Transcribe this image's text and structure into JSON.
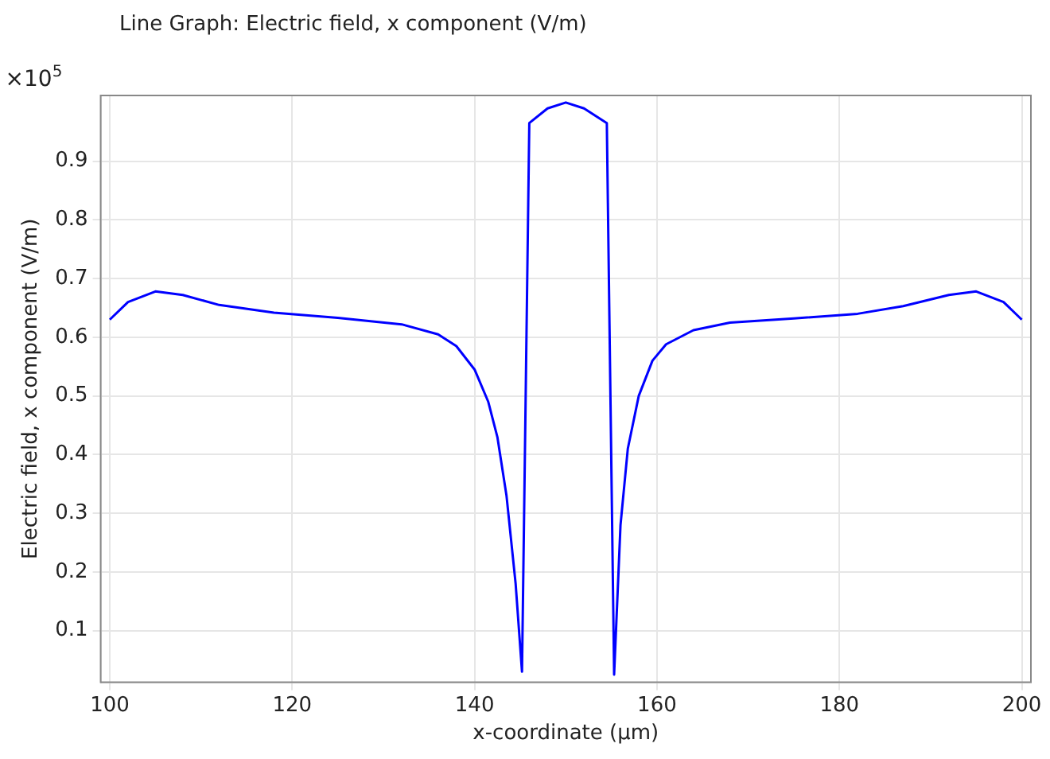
{
  "chart_data": {
    "type": "line",
    "title": "Line Graph: Electric field, x component (V/m)",
    "xlabel": "x-coordinate (µm)",
    "ylabel": "Electric field, x component (V/m)",
    "annotations": [
      "×10$^{5}$"
    ],
    "x": [
      100,
      102,
      105,
      108,
      112,
      118,
      125,
      132,
      136,
      138,
      140,
      141.5,
      142.5,
      143.5,
      144.5,
      145.2,
      146,
      148,
      150,
      152,
      154.5,
      155.3,
      156,
      156.8,
      158,
      159.5,
      161,
      164,
      168,
      175,
      182,
      187,
      192,
      195,
      198,
      200
    ],
    "series": [
      {
        "color": "#0000ff",
        "values": [
          0.63,
          0.66,
          0.678,
          0.672,
          0.655,
          0.642,
          0.633,
          0.622,
          0.605,
          0.585,
          0.545,
          0.49,
          0.43,
          0.33,
          0.18,
          0.03,
          0.965,
          0.99,
          1.0,
          0.99,
          0.965,
          0.025,
          0.28,
          0.41,
          0.5,
          0.56,
          0.588,
          0.612,
          0.625,
          0.632,
          0.64,
          0.653,
          0.672,
          0.678,
          0.66,
          0.63
        ]
      }
    ],
    "xlim": [
      99,
      201
    ],
    "xticks": [
      100,
      120,
      140,
      160,
      180,
      200
    ],
    "ylim": [
      0.012,
      1.012
    ],
    "yticks": [
      0.1,
      0.2,
      0.3,
      0.4,
      0.5,
      0.6,
      0.7,
      0.8,
      0.9
    ],
    "grid": true,
    "legend": false,
    "marker": "none",
    "line_style": "solid"
  }
}
